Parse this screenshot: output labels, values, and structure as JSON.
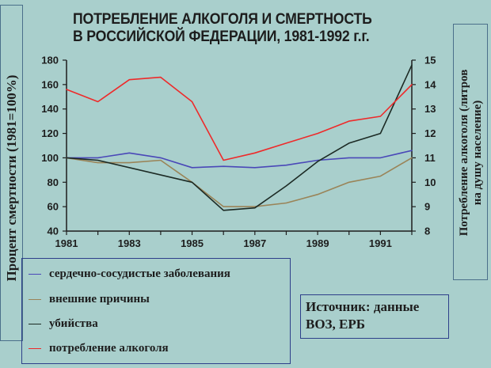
{
  "chart_data": {
    "type": "line",
    "title": "ПОТРЕБЛЕНИЕ АЛКОГОЛЯ И СМЕРТНОСТЬ В РОССИЙСКОЙ ФЕДЕРАЦИИ, 1981-1992 г.г.",
    "title_lines": [
      "ПОТРЕБЛЕНИЕ АЛКОГОЛЯ И СМЕРТНОСТЬ",
      "В РОССИЙСКОЙ ФЕДЕРАЦИИ, 1981-1992 г.г."
    ],
    "ylabel": "Процент смертности (1981=100%)",
    "y2label": "Потребление алкоголя (литров на душу население)",
    "y2label_lines": [
      "Потребление алкоголя (литров",
      "на душу население)"
    ],
    "xlim": [
      1981,
      1992
    ],
    "ylim": [
      40,
      180
    ],
    "y2lim": [
      8,
      15
    ],
    "x_ticks": [
      "1981",
      "1983",
      "1985",
      "1987",
      "1989",
      "1991"
    ],
    "y_ticks": [
      "40",
      "60",
      "80",
      "100",
      "120",
      "140",
      "160",
      "180"
    ],
    "y2_ticks": [
      "8",
      "9",
      "10",
      "11",
      "12",
      "13",
      "14",
      "15"
    ],
    "grid": false,
    "series": [
      {
        "name": "сердечно-сосудистые заболевания",
        "axis": "left",
        "color": "#4a48b8",
        "x": [
          1981,
          1982,
          1983,
          1984,
          1985,
          1986,
          1987,
          1988,
          1989,
          1990,
          1991,
          1992
        ],
        "values": [
          100,
          100,
          104,
          100,
          92,
          93,
          92,
          94,
          98,
          100,
          100,
          106
        ]
      },
      {
        "name": "внешние причины",
        "axis": "left",
        "color": "#9a8458",
        "x": [
          1981,
          1982,
          1983,
          1984,
          1985,
          1986,
          1987,
          1988,
          1989,
          1990,
          1991,
          1992
        ],
        "values": [
          100,
          96,
          96,
          98,
          80,
          60,
          60,
          63,
          70,
          80,
          85,
          100
        ]
      },
      {
        "name": "убийства",
        "axis": "left",
        "color": "#1c2a24",
        "x": [
          1981,
          1982,
          1985,
          1986,
          1987,
          1988,
          1989,
          1990,
          1991,
          1992
        ],
        "values": [
          100,
          98,
          80,
          57,
          59,
          77,
          97,
          112,
          120,
          176
        ]
      },
      {
        "name": "потребление алкоголя",
        "axis": "right",
        "color": "#ee2a2a",
        "x": [
          1981,
          1982,
          1983,
          1984,
          1985,
          1986,
          1987,
          1988,
          1989,
          1990,
          1991,
          1992
        ],
        "values": [
          13.8,
          13.3,
          14.2,
          14.3,
          13.3,
          10.9,
          11.2,
          11.6,
          12.0,
          12.5,
          12.7,
          14.0
        ]
      }
    ],
    "legend": [
      "сердечно-сосудистые заболевания",
      "внешние причины",
      "убийства",
      "потребление алкоголя"
    ],
    "source": [
      "Источник: данные",
      "ВОЗ, ЕРБ"
    ]
  },
  "colors": {
    "background": "#a9cfcc",
    "frame": "#2d3f8a",
    "axis": "#1d1d1d"
  }
}
